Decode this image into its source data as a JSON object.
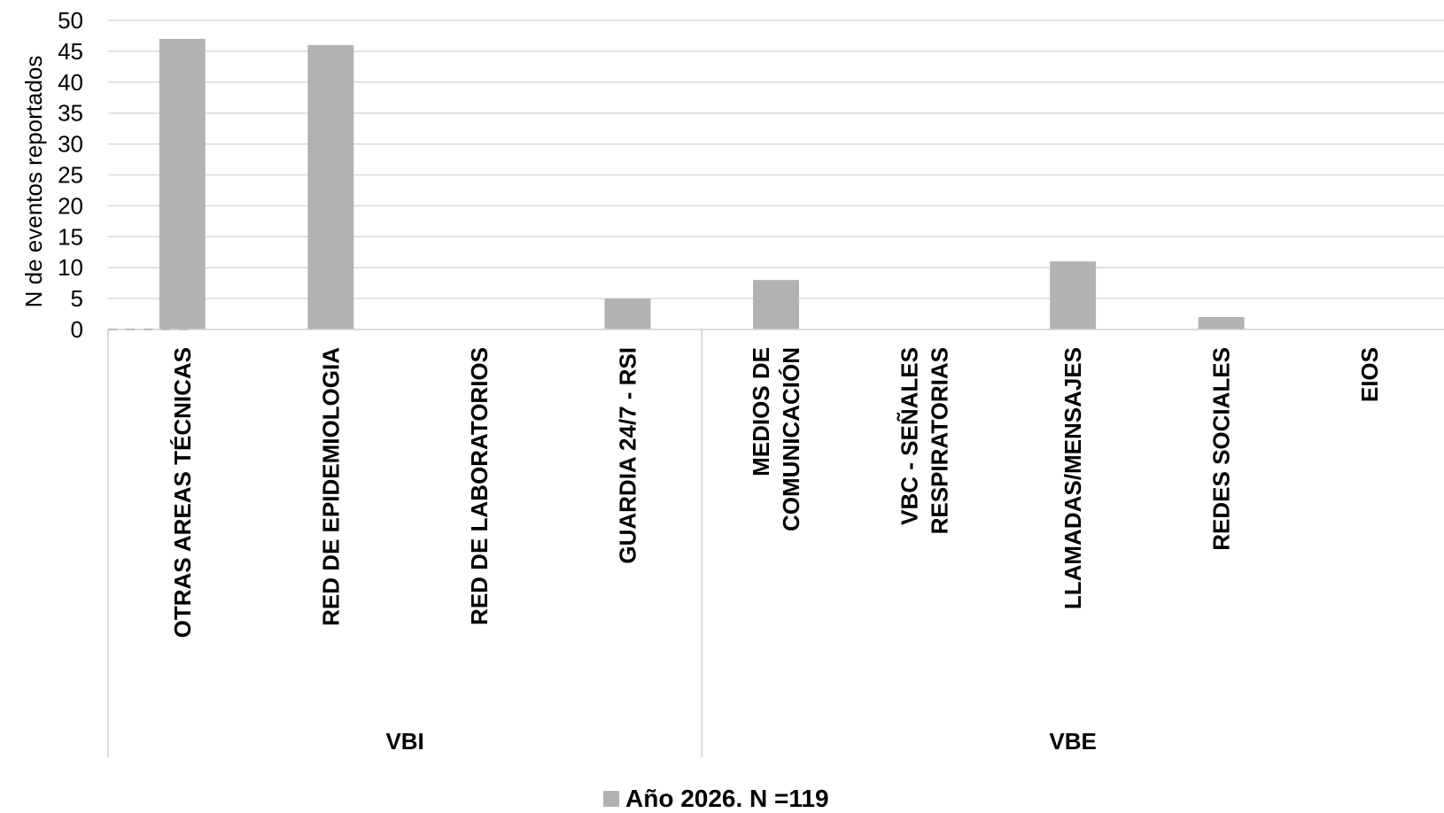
{
  "chart_data": {
    "type": "bar",
    "ylabel": "N de eventos reportados",
    "ylim": [
      0,
      50
    ],
    "yticks": [
      0,
      5,
      10,
      15,
      20,
      25,
      30,
      35,
      40,
      45,
      50
    ],
    "grid": true,
    "categories": [
      [
        "OTRAS AREAS TÉCNICAS"
      ],
      [
        "RED DE EPIDEMIOLOGIA"
      ],
      [
        "RED DE LABORATORIOS"
      ],
      [
        "GUARDIA 24/7 - RSI"
      ],
      [
        "MEDIOS DE",
        "COMUNICACIÓN"
      ],
      [
        "VBC - SEÑALES",
        "RESPIRATORIAS"
      ],
      [
        "LLAMADAS/MENSAJES"
      ],
      [
        "REDES SOCIALES"
      ],
      [
        "EIOS"
      ]
    ],
    "groups": [
      {
        "label": "VBI",
        "count": 4
      },
      {
        "label": "VBE",
        "count": 5
      }
    ],
    "series": [
      {
        "name": "Año 2026. N =119",
        "color": "#b2b2b2",
        "values": [
          47,
          46,
          0,
          5,
          8,
          0,
          11,
          2,
          0
        ]
      }
    ],
    "legend_position": "bottom-center"
  }
}
